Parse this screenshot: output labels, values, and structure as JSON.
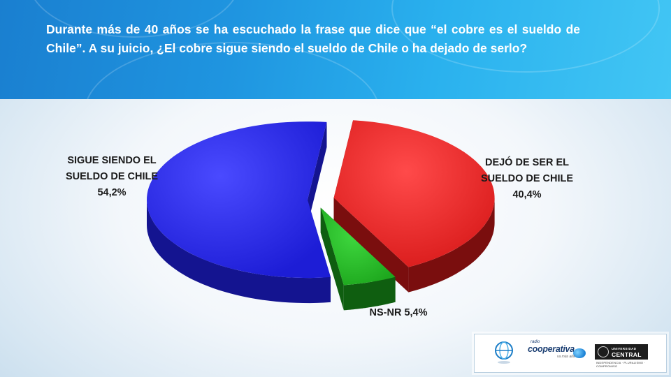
{
  "question": "Durante más de 40 años se ha escuchado la frase que dice que “el cobre es el sueldo de Chile”. A su juicio, ¿El cobre sigue siendo el sueldo de Chile o ha dejado de serlo?",
  "chart_data": {
    "type": "pie",
    "style": "3d-exploded",
    "slices": [
      {
        "name_lines": [
          "SIGUE SIENDO EL",
          "SUELDO DE CHILE"
        ],
        "value": 54.2,
        "value_label": "54,2%",
        "color": "#2323e8",
        "side_color": "#141490"
      },
      {
        "name_lines": [
          "DEJÓ DE SER EL",
          "SUELDO DE CHILE"
        ],
        "value": 40.4,
        "value_label": "40,4%",
        "color": "#ee2222",
        "side_color": "#7a0e0e"
      },
      {
        "name_lines": [
          "NS-NR 5,4%"
        ],
        "value": 5.4,
        "value_label": "",
        "color": "#22bb22",
        "side_color": "#0f5e10"
      }
    ]
  },
  "logos": {
    "cooperativa_radio": "radio",
    "cooperativa_name": "cooperativa",
    "cooperativa_tagline": "va más allá",
    "universidad_small": "UNIVERSIDAD",
    "universidad_big": "CENTRAL",
    "universidad_tagline": "INDEPENDENCIA · PLURALISMO · COMPROMISO"
  }
}
